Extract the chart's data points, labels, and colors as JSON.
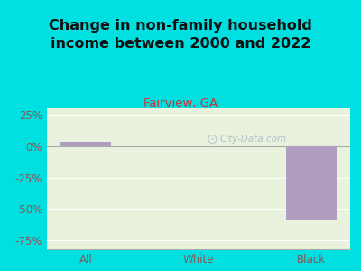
{
  "title": "Change in non-family household\nincome between 2000 and 2022",
  "subtitle": "Fairview, GA",
  "categories": [
    "All",
    "White",
    "Black"
  ],
  "values": [
    3.5,
    0,
    -58.0
  ],
  "bar_color": "#b09ec0",
  "title_fontsize": 11.5,
  "subtitle_fontsize": 9.5,
  "subtitle_color": "#cc3333",
  "title_color": "#111111",
  "tick_label_color": "#885555",
  "axis_tick_fontsize": 8.5,
  "ylim": [
    -82,
    30
  ],
  "yticks": [
    -75,
    -50,
    -25,
    0,
    25
  ],
  "ytick_labels": [
    "-75%",
    "-50%",
    "-25%",
    "0%",
    "25%"
  ],
  "background_color": "#00e0e0",
  "plot_bg": "#e8f2dc",
  "watermark": "City-Data.com",
  "watermark_color": "#aab8c8",
  "bar_width": 0.45
}
